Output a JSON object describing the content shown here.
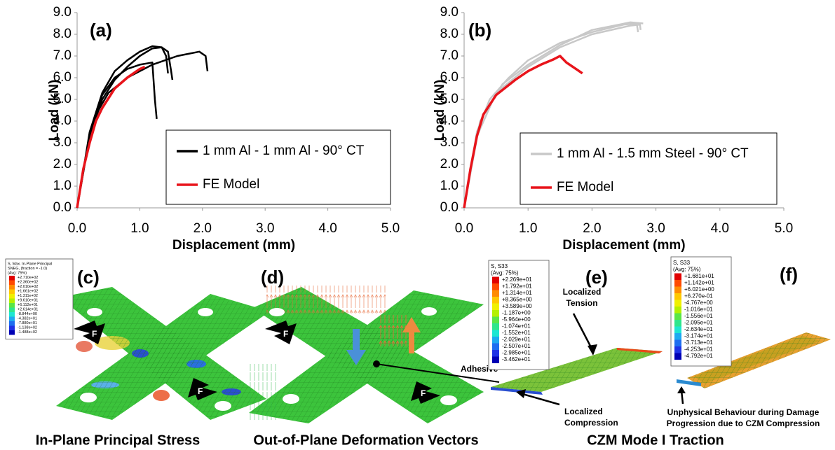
{
  "chart_data": [
    {
      "type": "line",
      "panel_label": "(a)",
      "xlabel": "Displacement (mm)",
      "ylabel": "Load (kN)",
      "xlim": [
        0,
        5
      ],
      "ylim": [
        0,
        9
      ],
      "xticks": [
        {
          "value": 0,
          "label": "0.0"
        },
        {
          "value": 1,
          "label": "1.0"
        },
        {
          "value": 2,
          "label": "2.0"
        },
        {
          "value": 3,
          "label": "3.0"
        },
        {
          "value": 4,
          "label": "4.0"
        },
        {
          "value": 5,
          "label": "5.0"
        }
      ],
      "yticks": [
        {
          "value": 0,
          "label": "0.0"
        },
        {
          "value": 1,
          "label": "1.0"
        },
        {
          "value": 2,
          "label": "2.0"
        },
        {
          "value": 3,
          "label": "3.0"
        },
        {
          "value": 4,
          "label": "4.0"
        },
        {
          "value": 5,
          "label": "5.0"
        },
        {
          "value": 6,
          "label": "6.0"
        },
        {
          "value": 7,
          "label": "7.0"
        },
        {
          "value": 8,
          "label": "8.0"
        },
        {
          "value": 9,
          "label": "9.0"
        }
      ],
      "series": [
        {
          "name": "1 mm Al - 1 mm Al - 90° CT",
          "color": "#000000",
          "curves": [
            {
              "x": [
                0,
                0.1,
                0.2,
                0.3,
                0.5,
                0.8,
                1.2,
                1.6,
                1.95,
                2.05,
                2.08
              ],
              "y": [
                0,
                1.8,
                3.2,
                4.3,
                5.3,
                6.0,
                6.6,
                7.0,
                7.2,
                7.0,
                6.3
              ]
            },
            {
              "x": [
                0,
                0.2,
                0.4,
                0.6,
                0.8,
                1.0,
                1.2,
                1.35,
                1.45,
                1.5,
                1.52
              ],
              "y": [
                0,
                3.3,
                5.0,
                5.9,
                6.5,
                7.0,
                7.35,
                7.4,
                7.2,
                6.3,
                5.9
              ]
            },
            {
              "x": [
                0,
                0.2,
                0.4,
                0.6,
                0.8,
                1.0,
                1.2,
                1.35,
                1.42,
                1.45
              ],
              "y": [
                0,
                3.5,
                5.3,
                6.3,
                6.8,
                7.2,
                7.45,
                7.4,
                7.0,
                6.2
              ]
            },
            {
              "x": [
                0,
                0.2,
                0.4,
                0.6,
                0.8,
                1.0,
                1.2,
                1.24,
                1.27
              ],
              "y": [
                0,
                3.4,
                5.2,
                6.0,
                6.4,
                6.6,
                6.7,
                5.0,
                4.1
              ]
            }
          ]
        },
        {
          "name": "FE Model",
          "color": "#e8141b",
          "curves": [
            {
              "x": [
                0,
                0.1,
                0.2,
                0.3,
                0.4,
                0.6,
                0.8,
                1.0,
                1.08
              ],
              "y": [
                0,
                1.8,
                3.0,
                4.0,
                4.6,
                5.5,
                6.0,
                6.4,
                6.5
              ]
            }
          ]
        }
      ]
    },
    {
      "type": "line",
      "panel_label": "(b)",
      "xlabel": "Displacement (mm)",
      "ylabel": "Load (kN)",
      "xlim": [
        0,
        5
      ],
      "ylim": [
        0,
        9
      ],
      "xticks": [
        {
          "value": 0,
          "label": "0.0"
        },
        {
          "value": 1,
          "label": "1.0"
        },
        {
          "value": 2,
          "label": "2.0"
        },
        {
          "value": 3,
          "label": "3.0"
        },
        {
          "value": 4,
          "label": "4.0"
        },
        {
          "value": 5,
          "label": "5.0"
        }
      ],
      "yticks": [
        {
          "value": 0,
          "label": "0.0"
        },
        {
          "value": 1,
          "label": "1.0"
        },
        {
          "value": 2,
          "label": "2.0"
        },
        {
          "value": 3,
          "label": "3.0"
        },
        {
          "value": 4,
          "label": "4.0"
        },
        {
          "value": 5,
          "label": "5.0"
        },
        {
          "value": 6,
          "label": "6.0"
        },
        {
          "value": 7,
          "label": "7.0"
        },
        {
          "value": 8,
          "label": "8.0"
        },
        {
          "value": 9,
          "label": "9.0"
        }
      ],
      "series": [
        {
          "name": "1 mm Al - 1.5 mm Steel - 90° CT",
          "color": "#c8c8c8",
          "curves": [
            {
              "x": [
                0,
                0.2,
                0.4,
                0.7,
                1.0,
                1.5,
                2.0,
                2.5,
                2.7,
                2.72
              ],
              "y": [
                0,
                3.5,
                5.0,
                6.0,
                6.8,
                7.6,
                8.1,
                8.45,
                8.5,
                8.1
              ]
            },
            {
              "x": [
                0,
                0.2,
                0.5,
                1.0,
                1.5,
                2.0,
                2.6,
                2.75,
                2.76
              ],
              "y": [
                0,
                3.3,
                5.3,
                6.5,
                7.4,
                8.0,
                8.4,
                8.45,
                8.2
              ]
            },
            {
              "x": [
                0,
                0.25,
                0.6,
                1.0,
                1.5,
                2.0,
                2.6,
                2.8
              ],
              "y": [
                0,
                4.0,
                5.7,
                6.6,
                7.5,
                8.2,
                8.55,
                8.5
              ]
            }
          ]
        },
        {
          "name": "FE Model",
          "color": "#e8141b",
          "curves": [
            {
              "x": [
                0,
                0.1,
                0.2,
                0.3,
                0.5,
                0.8,
                1.0,
                1.2,
                1.4,
                1.5,
                1.6,
                1.75,
                1.85
              ],
              "y": [
                0,
                1.8,
                3.3,
                4.3,
                5.2,
                5.9,
                6.3,
                6.6,
                6.85,
                7.0,
                6.7,
                6.4,
                6.2
              ]
            }
          ]
        }
      ]
    }
  ],
  "panels": [
    {
      "label": "(c)",
      "force_label": "F",
      "contour_legend": {
        "title": [
          "S, Max. In-Plane Principal",
          "SNEG, (fraction = -1.0)",
          "(Avg: 75%)"
        ],
        "levels": [
          "+2.710e+02",
          "+2.360e+02",
          "+2.010e+02",
          "+1.661e+02",
          "+1.311e+02",
          "+9.610e+01",
          "+6.112e+01",
          "+2.614e+01",
          "-8.844e+00",
          "-4.382e+01",
          "-7.880e+01",
          "-1.138e+02",
          "-1.488e+02"
        ]
      }
    },
    {
      "label": "(d)",
      "force_label": "F",
      "annotations": [
        "Adhesive"
      ]
    },
    {
      "label": "(e)",
      "contour_legend": {
        "title": [
          "S, S33",
          "(Avg: 75%)"
        ],
        "levels": [
          "+2.269e+01",
          "+1.792e+01",
          "+1.314e+01",
          "+8.365e+00",
          "+3.589e+00",
          "-1.187e+00",
          "-5.964e+00",
          "-1.074e+01",
          "-1.552e+01",
          "-2.029e+01",
          "-2.507e+01",
          "-2.985e+01",
          "-3.462e+01"
        ]
      },
      "annotations": [
        [
          "Localized",
          "Tension"
        ],
        [
          "Localized",
          "Compression"
        ]
      ]
    },
    {
      "label": "(f)",
      "contour_legend": {
        "title": [
          "S, S33",
          "(Avg: 75%)"
        ],
        "levels": [
          "+1.681e+01",
          "+1.142e+01",
          "+6.021e+00",
          "+6.270e-01",
          "-4.767e+00",
          "-1.016e+01",
          "-1.556e+01",
          "-2.095e+01",
          "-2.634e+01",
          "-3.174e+01",
          "-3.713e+01",
          "-4.253e+01",
          "-4.792e+01"
        ]
      },
      "annotations": [
        [
          "Unphysical Behaviour during Damage",
          "Progression due to CZM Compression"
        ]
      ]
    }
  ],
  "captions": [
    "In-Plane Principal Stress",
    "Out-of-Plane Deformation Vectors",
    "CZM Mode I Traction"
  ]
}
